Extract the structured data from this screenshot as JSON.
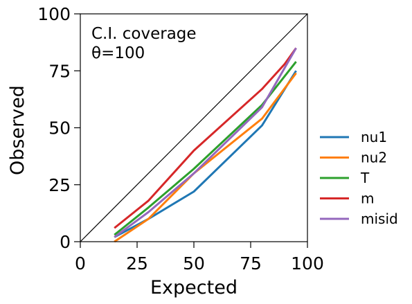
{
  "chart_data": {
    "type": "line",
    "title": "",
    "annotation": [
      "C.I. coverage",
      "θ=100"
    ],
    "xlabel": "Expected",
    "ylabel": "Observed",
    "xlim": [
      0,
      100
    ],
    "ylim": [
      0,
      100
    ],
    "xticks": [
      0,
      25,
      50,
      75,
      100
    ],
    "yticks": [
      0,
      25,
      50,
      75,
      100
    ],
    "xtick_labels": [
      "0",
      "25",
      "50",
      "75",
      "100"
    ],
    "ytick_labels": [
      "0",
      "25",
      "50",
      "75",
      "100"
    ],
    "grid": false,
    "legend_position": "outside-right",
    "reference_line": {
      "x": [
        0,
        100
      ],
      "y": [
        0,
        100
      ],
      "color": "#000000"
    },
    "series": [
      {
        "name": "nu1",
        "color": "#1f77b4",
        "x": [
          15,
          30,
          50,
          80,
          95
        ],
        "y": [
          2,
          10,
          22,
          51,
          75
        ]
      },
      {
        "name": "nu2",
        "color": "#ff7f0e",
        "x": [
          15,
          30,
          50,
          80,
          95
        ],
        "y": [
          0,
          10,
          30,
          54,
          74
        ]
      },
      {
        "name": "T",
        "color": "#2ca02c",
        "x": [
          15,
          30,
          50,
          80,
          95
        ],
        "y": [
          3,
          15,
          32,
          60,
          79
        ]
      },
      {
        "name": "m",
        "color": "#d62728",
        "x": [
          15,
          30,
          50,
          80,
          90,
          95
        ],
        "y": [
          6,
          18,
          40,
          67,
          78,
          85
        ]
      },
      {
        "name": "misid",
        "color": "#9467bd",
        "x": [
          15,
          30,
          50,
          80,
          95
        ],
        "y": [
          2,
          13,
          30,
          59,
          85
        ]
      }
    ]
  }
}
